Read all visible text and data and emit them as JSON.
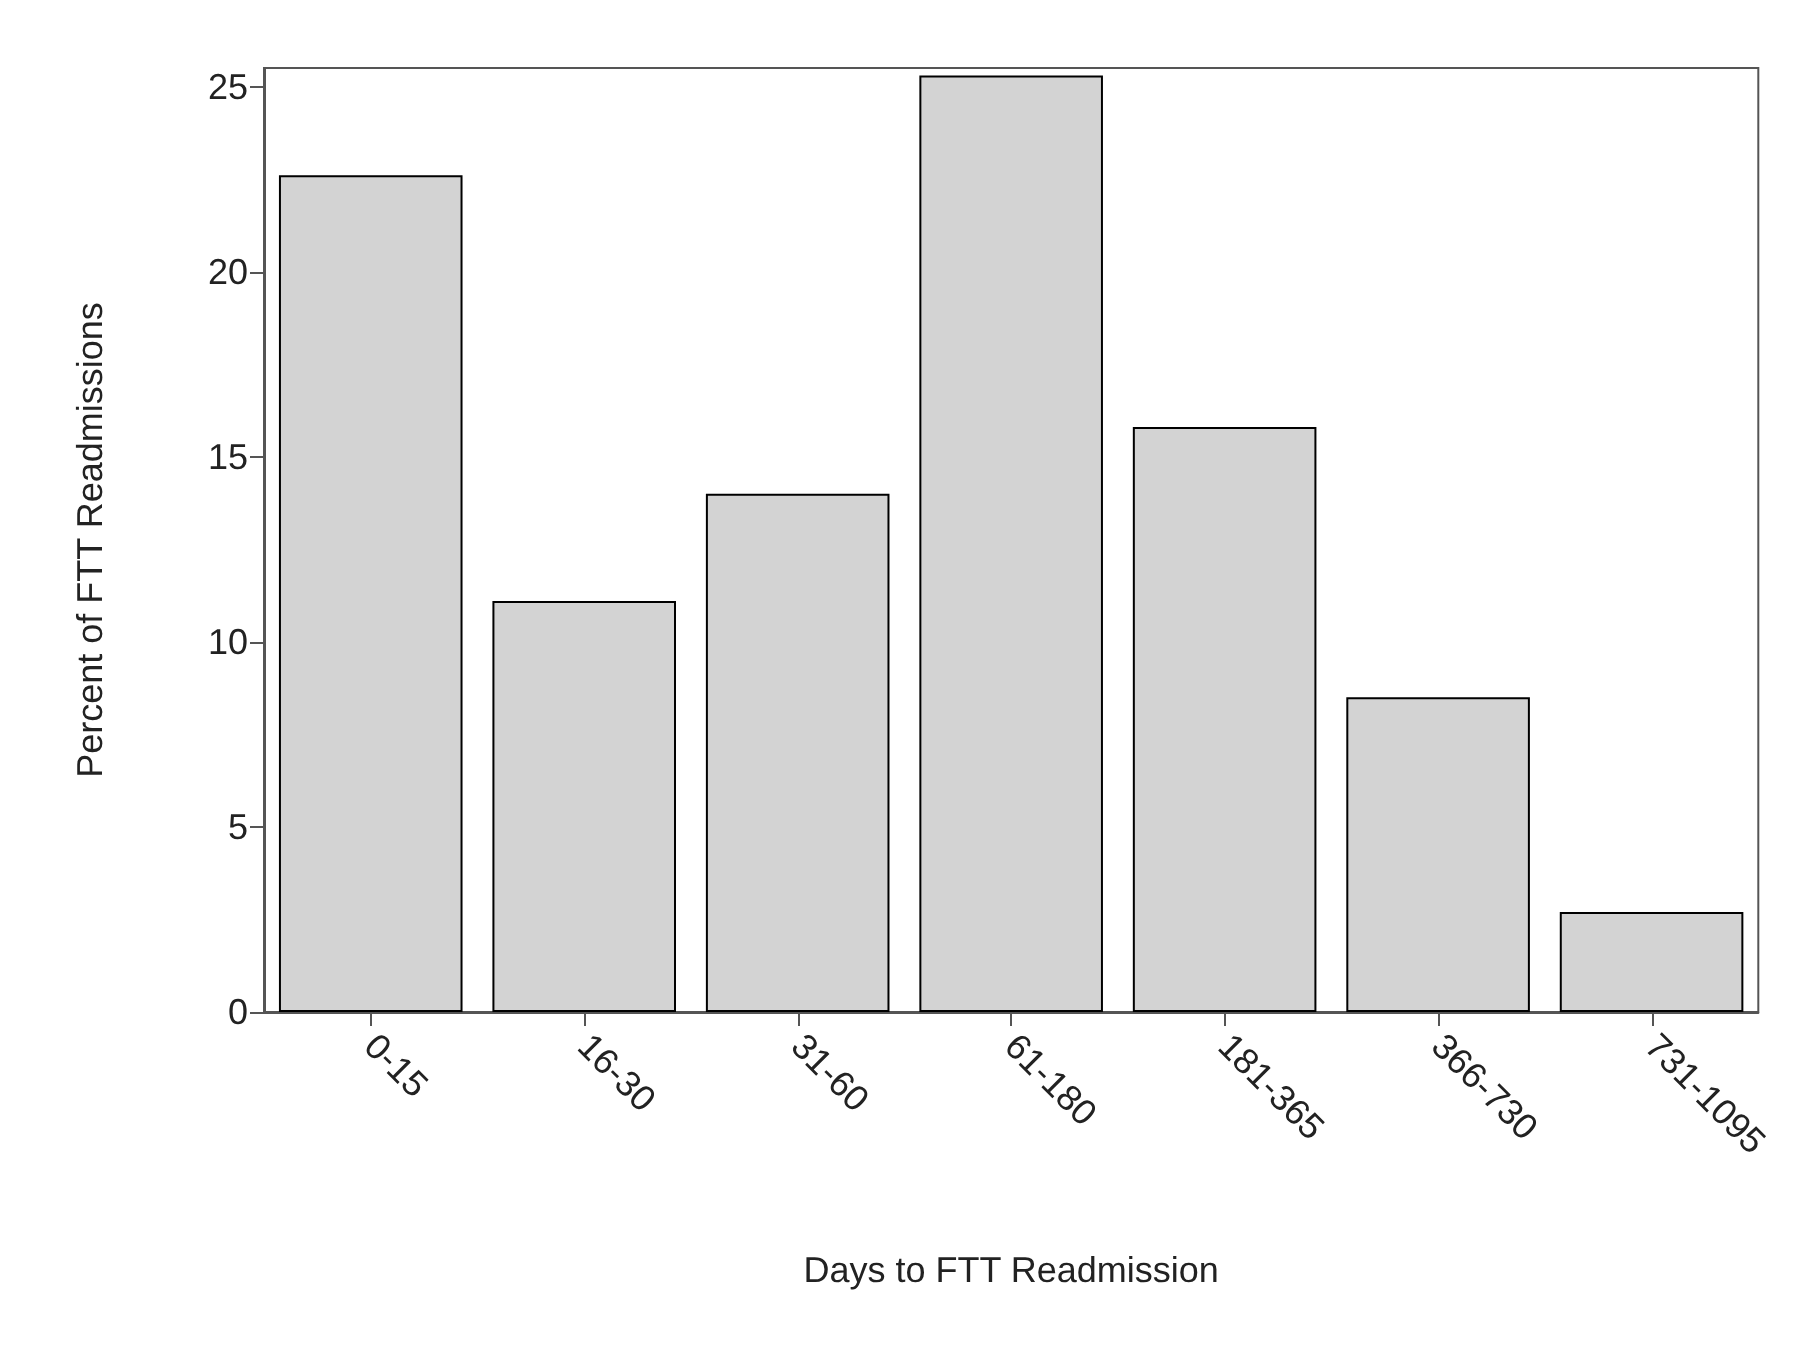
{
  "chart_data": {
    "type": "bar",
    "xlabel": "Days to FTT Readmission",
    "ylabel": "Percent of FTT Readmissions",
    "categories": [
      "0-15",
      "16-30",
      "31-60",
      "61-180",
      "181-365",
      "366-730",
      "731-1095"
    ],
    "values": [
      22.6,
      11.1,
      14.0,
      25.3,
      15.8,
      8.5,
      2.7
    ],
    "color": "#d3d3d3",
    "ylim": [
      0,
      25.5
    ],
    "yticks": [
      0,
      5,
      10,
      15,
      20,
      25
    ],
    "grid": false
  }
}
